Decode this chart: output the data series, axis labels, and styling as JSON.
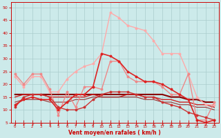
{
  "bg_color": "#cceaea",
  "grid_color": "#aacccc",
  "xlabel": "Vent moyen/en rafales ( km/h )",
  "xlabel_color": "#cc0000",
  "tick_color": "#cc0000",
  "xlim": [
    -0.5,
    23.5
  ],
  "ylim": [
    5,
    52
  ],
  "yticks": [
    5,
    10,
    15,
    20,
    25,
    30,
    35,
    40,
    45,
    50
  ],
  "xticks": [
    0,
    1,
    2,
    3,
    4,
    5,
    6,
    7,
    8,
    9,
    10,
    11,
    12,
    13,
    14,
    15,
    16,
    17,
    18,
    19,
    20,
    21,
    22,
    23
  ],
  "series": [
    {
      "x": [
        0,
        1,
        2,
        3,
        4,
        5,
        6,
        7,
        8,
        9,
        10,
        11,
        12,
        13,
        14,
        15,
        16,
        17,
        18,
        19,
        20,
        21,
        22,
        23
      ],
      "y": [
        23,
        19,
        23,
        23,
        17,
        17,
        22,
        25,
        27,
        28,
        32,
        48,
        46,
        43,
        42,
        41,
        37,
        32,
        32,
        32,
        24,
        15,
        12,
        12
      ],
      "color": "#ffaaaa",
      "lw": 1.0,
      "marker": "o",
      "ms": 1.8,
      "zorder": 3
    },
    {
      "x": [
        0,
        1,
        2,
        3,
        4,
        5,
        6,
        7,
        8,
        9,
        10,
        11,
        12,
        13,
        14,
        15,
        16,
        17,
        18,
        19,
        20,
        21,
        22,
        23
      ],
      "y": [
        24,
        20,
        24,
        24,
        18,
        8,
        17,
        11,
        19,
        19,
        18,
        29,
        29,
        23,
        21,
        21,
        21,
        19,
        16,
        16,
        24,
        6,
        6,
        13
      ],
      "color": "#ee8888",
      "lw": 1.0,
      "marker": "o",
      "ms": 1.8,
      "zorder": 3
    },
    {
      "x": [
        0,
        1,
        2,
        3,
        4,
        5,
        6,
        7,
        8,
        9,
        10,
        11,
        12,
        13,
        14,
        15,
        16,
        17,
        18,
        19,
        20,
        21,
        22,
        23
      ],
      "y": [
        12,
        14,
        15,
        14,
        14,
        10,
        13,
        16,
        16,
        19,
        32,
        31,
        29,
        25,
        23,
        21,
        21,
        20,
        18,
        16,
        14,
        6,
        5,
        6
      ],
      "color": "#dd2222",
      "lw": 1.2,
      "marker": "o",
      "ms": 1.8,
      "zorder": 4
    },
    {
      "x": [
        0,
        1,
        2,
        3,
        4,
        5,
        6,
        7,
        8,
        9,
        10,
        11,
        12,
        13,
        14,
        15,
        16,
        17,
        18,
        19,
        20,
        21,
        22,
        23
      ],
      "y": [
        11,
        15,
        16,
        16,
        15,
        11,
        10,
        10,
        11,
        14,
        16,
        17,
        17,
        17,
        16,
        15,
        15,
        13,
        12,
        11,
        9,
        8,
        7,
        6
      ],
      "color": "#cc3333",
      "lw": 1.0,
      "marker": "o",
      "ms": 1.8,
      "zorder": 3
    },
    {
      "x": [
        0,
        1,
        2,
        3,
        4,
        5,
        6,
        7,
        8,
        9,
        10,
        11,
        12,
        13,
        14,
        15,
        16,
        17,
        18,
        19,
        20,
        21,
        22,
        23
      ],
      "y": [
        16,
        16,
        16,
        16,
        16,
        16,
        16,
        16,
        16,
        16,
        16,
        16,
        16,
        16,
        16,
        16,
        16,
        16,
        15,
        15,
        14,
        14,
        13,
        13
      ],
      "color": "#880000",
      "lw": 1.5,
      "marker": null,
      "ms": 0,
      "zorder": 2
    },
    {
      "x": [
        0,
        1,
        2,
        3,
        4,
        5,
        6,
        7,
        8,
        9,
        10,
        11,
        12,
        13,
        14,
        15,
        16,
        17,
        18,
        19,
        20,
        21,
        22,
        23
      ],
      "y": [
        15,
        16,
        16,
        16,
        15,
        15,
        15,
        15,
        15,
        16,
        15,
        15,
        15,
        16,
        16,
        15,
        15,
        14,
        14,
        13,
        13,
        12,
        12,
        11
      ],
      "color": "#cc2222",
      "lw": 1.0,
      "marker": null,
      "ms": 0,
      "zorder": 2
    },
    {
      "x": [
        0,
        1,
        2,
        3,
        4,
        5,
        6,
        7,
        8,
        9,
        10,
        11,
        12,
        13,
        14,
        15,
        16,
        17,
        18,
        19,
        20,
        21,
        22,
        23
      ],
      "y": [
        13,
        14,
        14,
        14,
        13,
        13,
        13,
        14,
        14,
        15,
        15,
        15,
        15,
        15,
        15,
        14,
        14,
        13,
        13,
        12,
        12,
        11,
        11,
        10
      ],
      "color": "#993333",
      "lw": 0.8,
      "marker": null,
      "ms": 0,
      "zorder": 2
    }
  ]
}
